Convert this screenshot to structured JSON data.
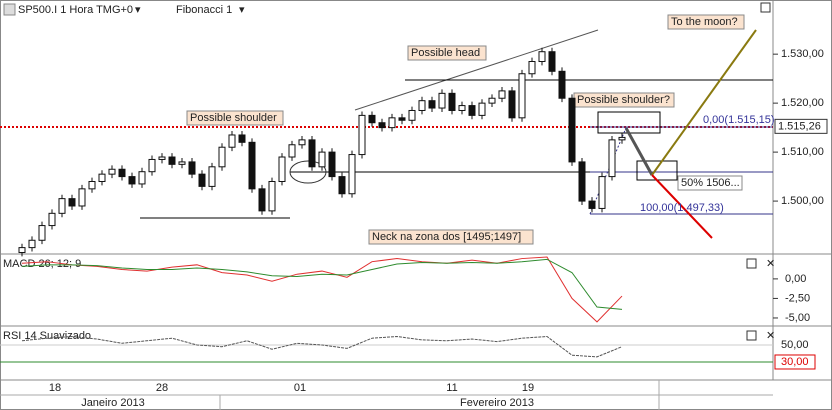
{
  "chart_data": {
    "type": "candlestick",
    "header": "SP500.I 1 Hora TMG+0",
    "tool": "Fibonacci 1",
    "open": [
      1489.5,
      1490.5,
      1492.0,
      1495.0,
      1497.5,
      1500.5,
      1499.0,
      1502.5,
      1504.0,
      1505.5,
      1506.5,
      1505.0,
      1503.5,
      1506.0,
      1508.5,
      1509.0,
      1507.5,
      1508.0,
      1505.5,
      1503.0,
      1507.0,
      1511.0,
      1513.5,
      1512.0,
      1502.5,
      1498.0,
      1504.0,
      1509.0,
      1511.5,
      1512.5,
      1507.0,
      1510.0,
      1505.0,
      1501.5,
      1509.5,
      1517.5,
      1516.0,
      1515.0,
      1517.0,
      1516.5,
      1518.5,
      1520.5,
      1519.0,
      1522.0,
      1518.5,
      1519.5,
      1517.5,
      1520.0,
      1521.0,
      1522.5,
      1517.0,
      1526.0,
      1528.5,
      1530.5,
      1526.5,
      1521.0,
      1508.0,
      1500.0,
      1498.5,
      1505.0,
      1512.5
    ],
    "high": [
      1491.3,
      1492.8,
      1495.8,
      1498.3,
      1501.3,
      1501.3,
      1503.3,
      1504.8,
      1506.3,
      1507.3,
      1507.3,
      1505.8,
      1506.8,
      1509.3,
      1509.8,
      1509.8,
      1508.8,
      1508.8,
      1506.3,
      1507.8,
      1511.8,
      1514.3,
      1514.3,
      1512.8,
      1503.3,
      1504.8,
      1509.8,
      1512.3,
      1513.3,
      1513.3,
      1510.8,
      1510.8,
      1505.8,
      1510.3,
      1518.3,
      1518.3,
      1516.8,
      1517.8,
      1517.8,
      1519.3,
      1521.3,
      1521.3,
      1522.8,
      1522.8,
      1520.3,
      1520.3,
      1520.8,
      1521.8,
      1523.3,
      1523.3,
      1526.8,
      1529.3,
      1531.3,
      1531.3,
      1527.3,
      1521.8,
      1508.8,
      1500.8,
      1505.8,
      1513.3,
      1513.8
    ],
    "low": [
      1488.7,
      1489.7,
      1491.2,
      1494.2,
      1496.7,
      1498.2,
      1498.2,
      1501.7,
      1503.2,
      1504.7,
      1504.2,
      1502.7,
      1502.7,
      1505.2,
      1507.7,
      1506.7,
      1506.7,
      1504.7,
      1502.2,
      1502.2,
      1506.2,
      1510.2,
      1511.2,
      1501.7,
      1497.2,
      1497.2,
      1503.2,
      1508.2,
      1510.7,
      1506.2,
      1506.2,
      1504.2,
      1500.7,
      1500.7,
      1508.7,
      1515.2,
      1514.2,
      1514.2,
      1515.7,
      1515.7,
      1517.7,
      1518.2,
      1518.2,
      1517.7,
      1517.7,
      1516.7,
      1516.7,
      1519.2,
      1520.2,
      1516.2,
      1516.2,
      1525.2,
      1527.7,
      1525.7,
      1520.2,
      1507.2,
      1499.2,
      1497.7,
      1497.7,
      1504.2,
      1511.7
    ],
    "close": [
      1490.5,
      1492.0,
      1495.0,
      1497.5,
      1500.5,
      1499.0,
      1502.5,
      1504.0,
      1505.5,
      1506.5,
      1505.0,
      1503.5,
      1506.0,
      1508.5,
      1509.0,
      1507.5,
      1508.0,
      1505.5,
      1503.0,
      1507.0,
      1511.0,
      1513.5,
      1512.0,
      1502.5,
      1498.0,
      1504.0,
      1509.0,
      1511.5,
      1512.5,
      1507.0,
      1510.0,
      1505.0,
      1501.5,
      1509.5,
      1517.5,
      1516.0,
      1515.0,
      1517.0,
      1516.5,
      1518.5,
      1520.5,
      1519.0,
      1522.0,
      1518.5,
      1519.5,
      1517.5,
      1520.0,
      1521.0,
      1522.5,
      1517.0,
      1526.0,
      1528.5,
      1530.5,
      1526.5,
      1521.0,
      1508.0,
      1500.0,
      1498.5,
      1505.0,
      1512.5,
      1513.0
    ],
    "ylim": [
      1489.4,
      1538.2
    ],
    "yticks": [
      {
        "value": 1500,
        "label": "1.500,00"
      },
      {
        "value": 1510,
        "label": "1.510,00"
      },
      {
        "value": 1520,
        "label": "1.520,00"
      },
      {
        "value": 1530,
        "label": "1.530,00"
      }
    ],
    "last_price": {
      "value": 1515.26,
      "label": "1.515,26"
    },
    "date_labels": [
      "18",
      "28",
      "01",
      "11",
      "19"
    ],
    "month_labels": [
      "Janeiro 2013",
      "Fevereiro 2013"
    ],
    "annotations": [
      "Possible head",
      "Possible shoulder",
      "Possible shoulder?",
      "To the moon?",
      "Neck na zona dos [1495;1497]",
      "0,00(1.515,15)",
      "50% 1506...",
      "100,00(1.497,33)"
    ],
    "macd": {
      "title": "MACD 26; 12; 9",
      "ylim": [
        -5.9,
        2.8
      ],
      "yticks": [
        {
          "value": 0,
          "label": "0,00"
        },
        {
          "value": -2.5,
          "label": "-2,50"
        },
        {
          "value": -5,
          "label": "-5,00"
        }
      ],
      "series": [
        {
          "color": "#e03030",
          "values": [
            2.0,
            2.2,
            1.8,
            1.6,
            1.2,
            1.0,
            1.5,
            1.8,
            0.8,
            0.5,
            -0.3,
            0.6,
            1.0,
            0.2,
            2.2,
            2.6,
            2.2,
            2.0,
            2.4,
            2.0,
            2.6,
            2.8,
            -2.5,
            -5.5,
            -2.2
          ]
        },
        {
          "color": "#2e8b2e",
          "values": [
            1.6,
            1.8,
            1.8,
            1.7,
            1.4,
            1.2,
            1.2,
            1.4,
            1.2,
            0.9,
            0.4,
            0.3,
            0.6,
            0.5,
            1.2,
            1.9,
            2.1,
            2.0,
            2.1,
            2.0,
            2.2,
            2.5,
            0.8,
            -3.6,
            -3.9
          ]
        }
      ]
    },
    "rsi": {
      "title": "RSI 14 Suavizado",
      "ylim": [
        8.8,
        70
      ],
      "yticks": [
        {
          "value": 50,
          "label": "50,00"
        },
        {
          "value": 30,
          "label": "30,00"
        }
      ],
      "color": "#555555",
      "values": [
        55,
        58,
        60,
        57,
        52,
        55,
        58,
        50,
        48,
        55,
        45,
        52,
        50,
        46,
        58,
        60,
        56,
        55,
        57,
        54,
        58,
        60,
        38,
        36,
        48
      ]
    }
  }
}
